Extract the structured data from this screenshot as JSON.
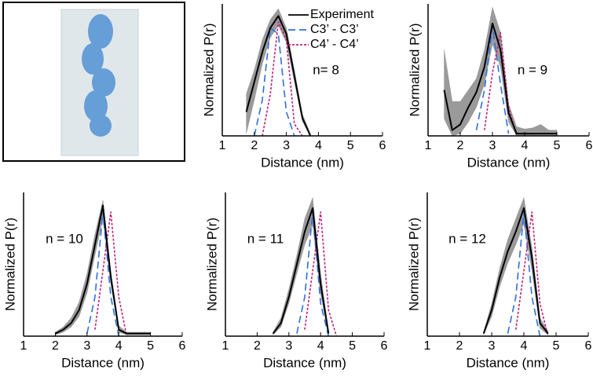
{
  "chart_data": [
    {
      "type": "line",
      "annotation": "n= 8",
      "xlabel": "Distance (nm)",
      "ylabel": "Normalized P(r)",
      "x": [
        1.5,
        1.75,
        2,
        2.25,
        2.5,
        2.75,
        3,
        3.25,
        3.5,
        3.75,
        4,
        4.25,
        4.5,
        4.75,
        5
      ],
      "xlim": [
        1,
        6
      ],
      "xticks": [
        1,
        2,
        3,
        4,
        5,
        6
      ],
      "ylim": [
        0,
        1.1
      ],
      "legend": "upper right",
      "series": [
        {
          "name": "Experiment",
          "color": "#000000",
          "dash": "none",
          "values": [
            null,
            0.2,
            0.45,
            0.7,
            0.9,
            1.0,
            0.85,
            0.5,
            0.15,
            0.0,
            null,
            null,
            null,
            null,
            null
          ],
          "upper": [
            null,
            0.35,
            0.55,
            0.8,
            0.97,
            1.06,
            0.9,
            0.55,
            0.18,
            0.02,
            null,
            null,
            null,
            null,
            null
          ],
          "lower": [
            null,
            0.02,
            0.3,
            0.6,
            0.82,
            0.92,
            0.78,
            0.45,
            0.12,
            0.0,
            null,
            null,
            null,
            null,
            null
          ]
        },
        {
          "name": "C3’ - C3’",
          "color": "#2f6fe0",
          "dash": "9 5",
          "values": [
            null,
            null,
            0,
            0.3,
            0.9,
            0.85,
            0.2,
            0,
            null,
            null,
            null,
            null,
            null,
            null,
            null
          ]
        },
        {
          "name": "C4’ - C4’",
          "color": "#c0207a",
          "dash": "3 2",
          "values": [
            null,
            null,
            null,
            0,
            0.35,
            0.95,
            0.8,
            0.1,
            0,
            null,
            null,
            null,
            null,
            null,
            null
          ]
        }
      ]
    },
    {
      "type": "line",
      "annotation": "n = 9",
      "xlabel": "Distance (nm)",
      "ylabel": "Normalized P(r)",
      "x": [
        1.5,
        1.75,
        2,
        2.25,
        2.5,
        2.75,
        3,
        3.25,
        3.5,
        3.75,
        4,
        4.25,
        4.5,
        4.75,
        5
      ],
      "xlim": [
        1,
        6
      ],
      "xticks": [
        1,
        2,
        3,
        4,
        5,
        6
      ],
      "ylim": [
        0,
        1.15
      ],
      "series": [
        {
          "name": "Experiment",
          "color": "#000000",
          "dash": "none",
          "values": [
            0.4,
            0.05,
            0.1,
            0.25,
            0.38,
            0.6,
            0.98,
            0.75,
            0.2,
            0.02,
            0.02,
            0.02,
            0.02,
            0.02,
            0.02
          ],
          "upper": [
            0.75,
            0.3,
            0.3,
            0.4,
            0.5,
            0.75,
            1.12,
            0.9,
            0.28,
            0.08,
            0.06,
            0.07,
            0.1,
            0.05,
            0.05
          ],
          "lower": [
            0.15,
            0.0,
            0.02,
            0.12,
            0.25,
            0.45,
            0.8,
            0.6,
            0.12,
            0.0,
            0.0,
            0.0,
            0.0,
            0.0,
            0.0
          ]
        },
        {
          "name": "C3’ - C3’",
          "color": "#2f6fe0",
          "dash": "9 5",
          "values": [
            null,
            null,
            null,
            null,
            0.05,
            0.4,
            0.95,
            0.45,
            0.02,
            null,
            null,
            null,
            null,
            null,
            null
          ]
        },
        {
          "name": "C4’ - C4’",
          "color": "#c0207a",
          "dash": "3 2",
          "values": [
            null,
            null,
            null,
            null,
            null,
            0.05,
            0.55,
            0.9,
            0.25,
            0,
            null,
            null,
            null,
            null,
            null
          ]
        }
      ]
    },
    {
      "type": "line",
      "annotation": "n = 10",
      "xlabel": "Distance (nm)",
      "ylabel": "Normalized P(r)",
      "x": [
        1.5,
        1.75,
        2,
        2.25,
        2.5,
        2.75,
        3,
        3.25,
        3.5,
        3.75,
        4,
        4.25,
        4.5,
        4.75,
        5
      ],
      "xlim": [
        1,
        6
      ],
      "xticks": [
        1,
        2,
        3,
        4,
        5,
        6
      ],
      "ylim": [
        0,
        1.1
      ],
      "series": [
        {
          "name": "Experiment",
          "color": "#000000",
          "dash": "none",
          "values": [
            null,
            null,
            0.02,
            0.05,
            0.1,
            0.2,
            0.4,
            0.7,
            1.0,
            0.45,
            0.05,
            0.02,
            0.02,
            0.02,
            0.02
          ],
          "upper": [
            null,
            null,
            0.03,
            0.07,
            0.14,
            0.26,
            0.48,
            0.78,
            1.04,
            0.5,
            0.08,
            0.03,
            0.03,
            0.03,
            0.03
          ],
          "lower": [
            null,
            null,
            0.01,
            0.03,
            0.07,
            0.15,
            0.33,
            0.62,
            0.9,
            0.4,
            0.03,
            0.01,
            0.01,
            0.01,
            0.01
          ]
        },
        {
          "name": "C3’ - C3’",
          "color": "#2f6fe0",
          "dash": "9 5",
          "values": [
            null,
            null,
            null,
            null,
            null,
            null,
            0.02,
            0.3,
            0.95,
            0.3,
            0,
            null,
            null,
            null,
            null
          ]
        },
        {
          "name": "C4’ - C4’",
          "color": "#c0207a",
          "dash": "3 2",
          "values": [
            null,
            null,
            null,
            null,
            null,
            null,
            null,
            0.05,
            0.5,
            0.95,
            0.3,
            0,
            null,
            null,
            null
          ]
        }
      ]
    },
    {
      "type": "line",
      "annotation": "n = 11",
      "xlabel": "Distance (nm)",
      "ylabel": "Normalized P(r)",
      "x": [
        1.5,
        1.75,
        2,
        2.25,
        2.5,
        2.75,
        3,
        3.25,
        3.5,
        3.75,
        4,
        4.25,
        4.5,
        4.75,
        5
      ],
      "xlim": [
        1,
        6
      ],
      "xticks": [
        1,
        2,
        3,
        4,
        5,
        6
      ],
      "ylim": [
        0,
        1.1
      ],
      "series": [
        {
          "name": "Experiment",
          "color": "#000000",
          "dash": "none",
          "values": [
            null,
            null,
            null,
            null,
            0.02,
            0.1,
            0.3,
            0.55,
            0.8,
            0.98,
            0.4,
            0.02,
            null,
            null,
            null
          ],
          "upper": [
            null,
            null,
            null,
            null,
            0.03,
            0.14,
            0.36,
            0.62,
            0.9,
            1.06,
            0.48,
            0.04,
            null,
            null,
            null
          ],
          "lower": [
            null,
            null,
            null,
            null,
            0.01,
            0.07,
            0.25,
            0.48,
            0.7,
            0.85,
            0.32,
            0.01,
            null,
            null,
            null
          ]
        },
        {
          "name": "C3’ - C3’",
          "color": "#2f6fe0",
          "dash": "9 5",
          "values": [
            null,
            null,
            null,
            null,
            null,
            null,
            null,
            0.02,
            0.3,
            0.95,
            0.25,
            0,
            null,
            null,
            null
          ]
        },
        {
          "name": "C4’ - C4’",
          "color": "#c0207a",
          "dash": "3 2",
          "values": [
            null,
            null,
            null,
            null,
            null,
            null,
            null,
            null,
            0.05,
            0.5,
            0.95,
            0.2,
            0,
            null,
            null
          ]
        }
      ]
    },
    {
      "type": "line",
      "annotation": "n = 12",
      "xlabel": "Distance (nm)",
      "ylabel": "Normalized P(r)",
      "x": [
        1.5,
        1.75,
        2,
        2.25,
        2.5,
        2.75,
        3,
        3.25,
        3.5,
        3.75,
        4,
        4.25,
        4.5,
        4.75,
        5
      ],
      "xlim": [
        1,
        6
      ],
      "xticks": [
        1,
        2,
        3,
        4,
        5,
        6
      ],
      "ylim": [
        0,
        1.1
      ],
      "series": [
        {
          "name": "Experiment",
          "color": "#000000",
          "dash": "none",
          "values": [
            null,
            null,
            null,
            null,
            null,
            0.02,
            0.2,
            0.45,
            0.65,
            0.8,
            0.98,
            0.6,
            0.1,
            0.02,
            null
          ],
          "upper": [
            null,
            null,
            null,
            null,
            null,
            0.03,
            0.25,
            0.52,
            0.74,
            0.9,
            1.06,
            0.68,
            0.14,
            0.04,
            null
          ],
          "lower": [
            null,
            null,
            null,
            null,
            null,
            0.01,
            0.15,
            0.38,
            0.56,
            0.7,
            0.86,
            0.5,
            0.06,
            0.01,
            null
          ]
        },
        {
          "name": "C3’ - C3’",
          "color": "#2f6fe0",
          "dash": "9 5",
          "values": [
            null,
            null,
            null,
            null,
            null,
            null,
            null,
            null,
            0.02,
            0.3,
            0.95,
            0.3,
            0,
            null,
            null
          ]
        },
        {
          "name": "C4’ - C4’",
          "color": "#c0207a",
          "dash": "3 2",
          "values": [
            null,
            null,
            null,
            null,
            null,
            null,
            null,
            null,
            null,
            0.05,
            0.5,
            0.95,
            0.25,
            0,
            null
          ]
        }
      ]
    }
  ]
}
